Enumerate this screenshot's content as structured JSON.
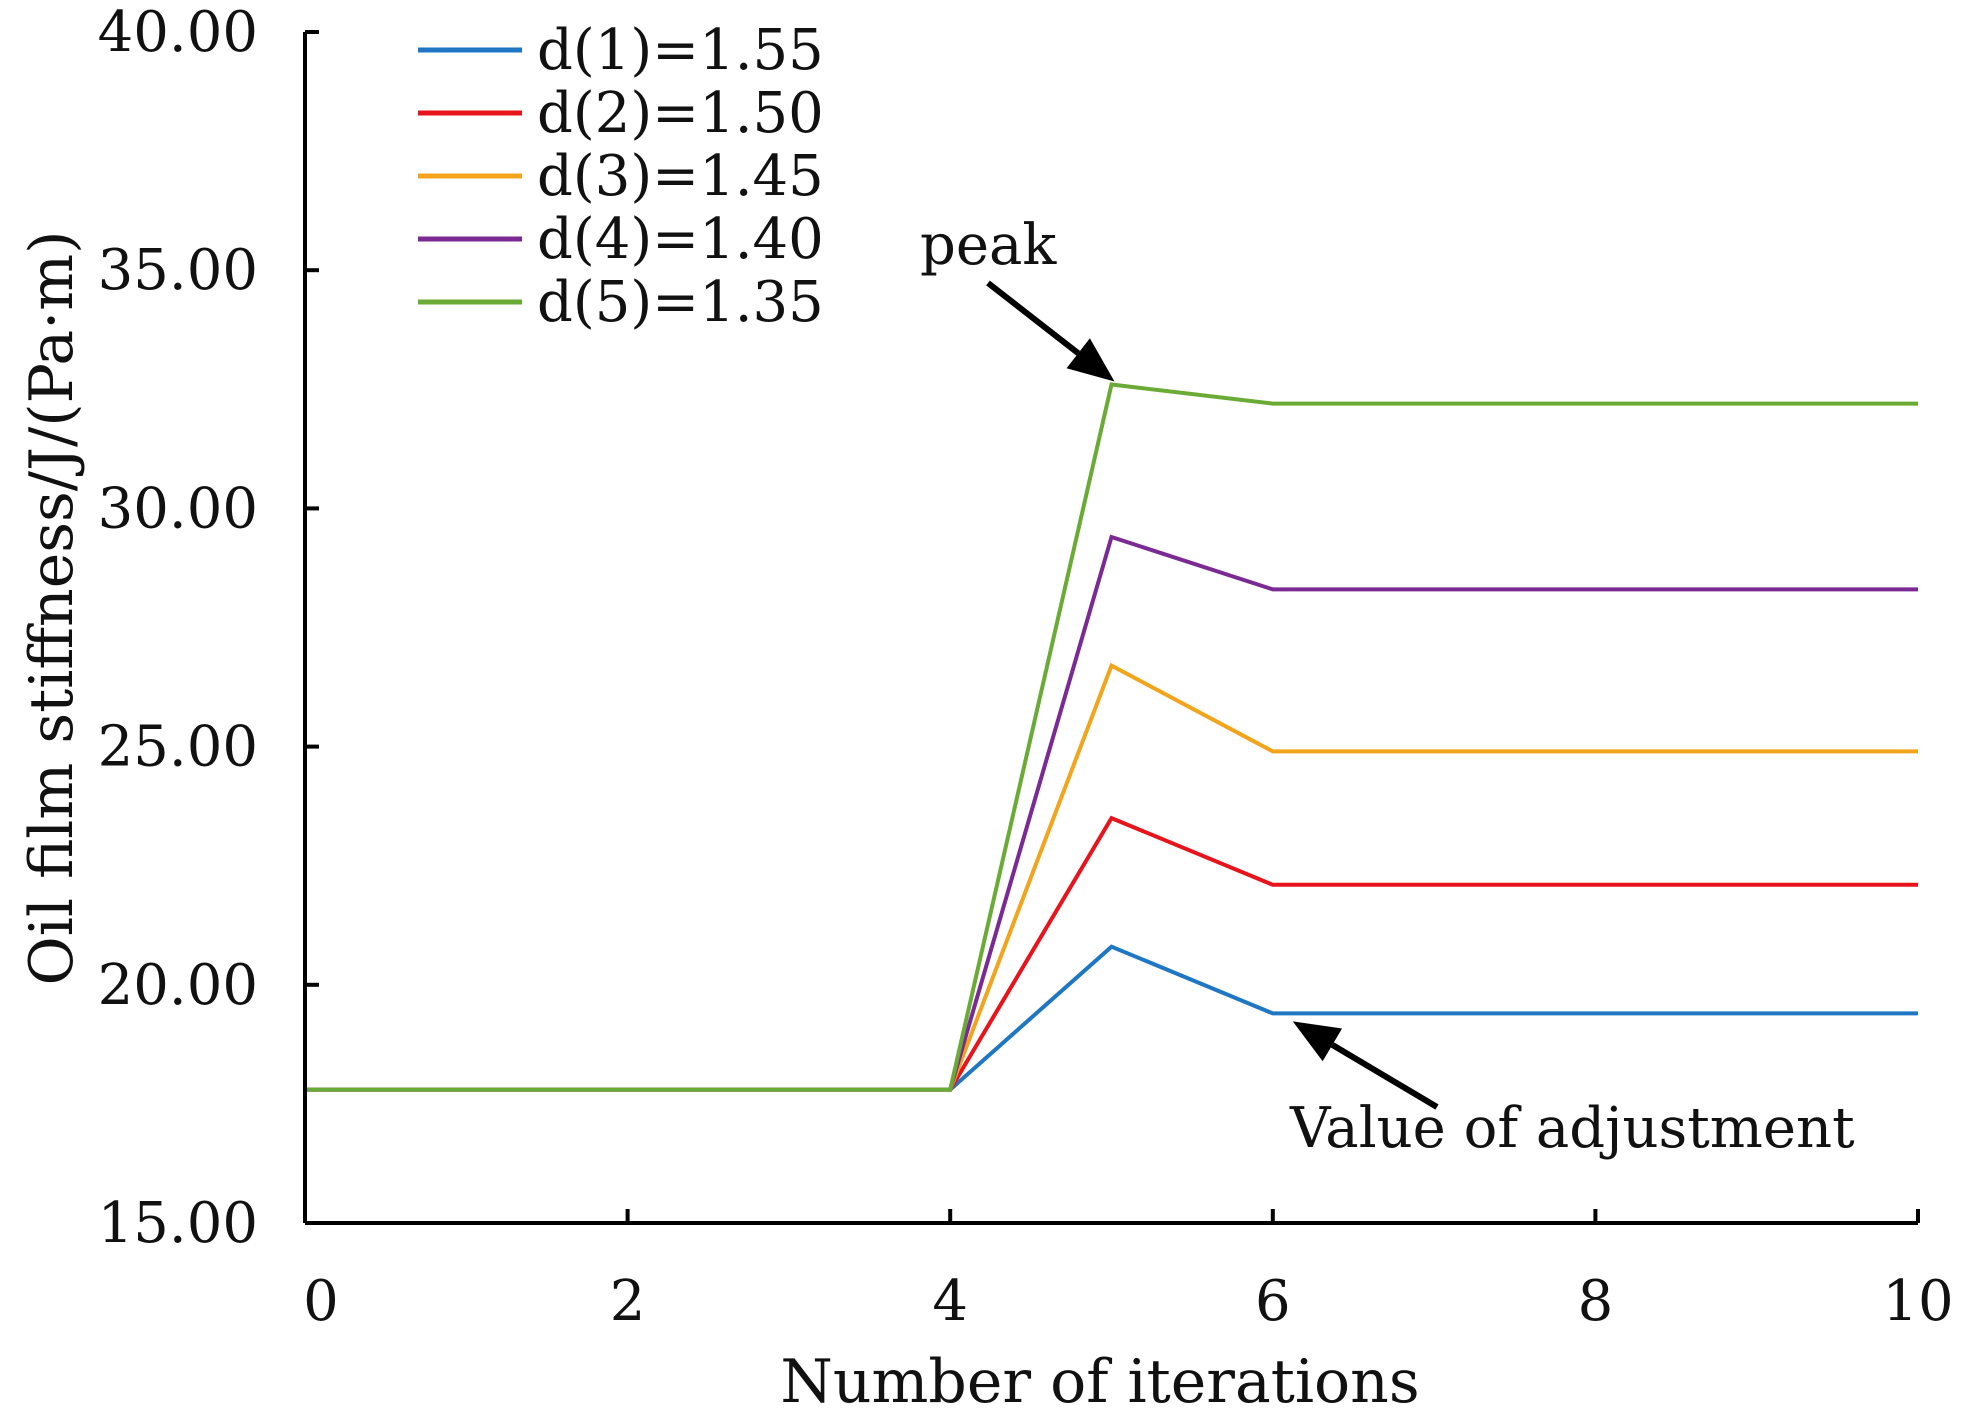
{
  "chart_data": {
    "type": "line",
    "title": "",
    "xlabel": "Number of iterations",
    "ylabel": "Oil film stiffness/J/(Pa·m)",
    "xlim": [
      0,
      10
    ],
    "ylim": [
      15,
      40
    ],
    "x_ticks": [
      0,
      2,
      4,
      6,
      8,
      10
    ],
    "x_tick_labels": [
      "0",
      "2",
      "4",
      "6",
      "8",
      "10"
    ],
    "y_ticks": [
      15,
      20,
      25,
      30,
      35,
      40
    ],
    "y_tick_labels": [
      "15.00",
      "20.00",
      "25.00",
      "30.00",
      "35.00",
      "40.00"
    ],
    "grid": false,
    "legend_position": "top-left",
    "x": [
      0,
      4,
      5,
      6,
      10
    ],
    "series": [
      {
        "name": "d(1)=1.55",
        "color": "#1f77c4",
        "values": [
          17.8,
          17.8,
          20.8,
          19.4,
          19.4
        ]
      },
      {
        "name": "d(2)=1.50",
        "color": "#e8141b",
        "values": [
          17.8,
          17.8,
          23.5,
          22.1,
          22.1
        ]
      },
      {
        "name": "d(3)=1.45",
        "color": "#f2a51c",
        "values": [
          17.8,
          17.8,
          26.7,
          24.9,
          24.9
        ]
      },
      {
        "name": "d(4)=1.40",
        "color": "#7b2a94",
        "values": [
          17.8,
          17.8,
          29.4,
          28.3,
          28.3
        ]
      },
      {
        "name": "d(5)=1.35",
        "color": "#6aab35",
        "values": [
          17.8,
          17.8,
          32.6,
          32.2,
          32.2
        ]
      }
    ],
    "annotations": [
      {
        "text": "peak",
        "points_to": {
          "x": 5,
          "y": 32.6
        }
      },
      {
        "text": "Value of adjustment",
        "points_to": {
          "x": 6,
          "y": 19.4
        }
      }
    ]
  }
}
